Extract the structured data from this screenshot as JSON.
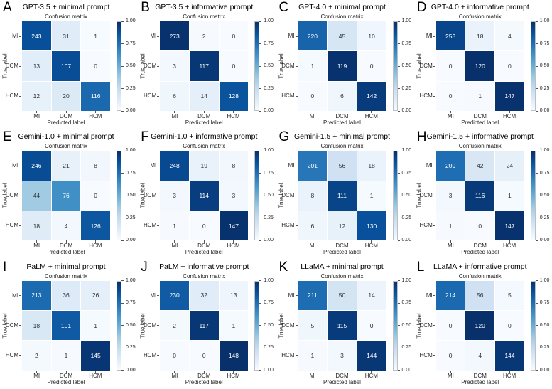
{
  "figure": {
    "background": "#ffffff",
    "layout": "4x3 grid of row-normalized confusion-matrix heatmaps"
  },
  "colorbar": {
    "tick_labels": [
      "0.00",
      "0.25",
      "0.50",
      "0.75",
      "1.00"
    ],
    "range": [
      0,
      1
    ]
  },
  "colors": {
    "colormap_name": "Blues",
    "colormap_stops": [
      "#f7fbff",
      "#deebf7",
      "#c6dbef",
      "#9ecae1",
      "#6baed6",
      "#4292c6",
      "#2171b5",
      "#08519c",
      "#08306b"
    ],
    "cell_text_light": "#ffffff",
    "cell_text_dark": "#333333",
    "axis_text": "#262626",
    "background": "#ffffff"
  },
  "chart_data": [
    {
      "type": "heatmap",
      "panel_letter": "A",
      "title": "GPT-3.5 + minimal prompt",
      "subtitle": "Confusion matrix",
      "xlabel": "Predicted label",
      "ylabel": "True label",
      "x_categories": [
        "MI",
        "DCM",
        "HCM"
      ],
      "y_categories": [
        "MI",
        "DCM",
        "HCM"
      ],
      "values": [
        [
          243,
          31,
          1
        ],
        [
          13,
          107,
          0
        ],
        [
          12,
          20,
          116
        ]
      ],
      "normalization": "row",
      "colormap": "Blues",
      "value_range": [
        0,
        1
      ]
    },
    {
      "type": "heatmap",
      "panel_letter": "B",
      "title": "GPT-3.5 + informative prompt",
      "subtitle": "Confusion matrix",
      "xlabel": "Predicted label",
      "ylabel": "True label",
      "x_categories": [
        "MI",
        "DCM",
        "HCM"
      ],
      "y_categories": [
        "MI",
        "DCM",
        "HCM"
      ],
      "values": [
        [
          273,
          2,
          0
        ],
        [
          3,
          117,
          0
        ],
        [
          6,
          14,
          128
        ]
      ],
      "normalization": "row",
      "colormap": "Blues",
      "value_range": [
        0,
        1
      ]
    },
    {
      "type": "heatmap",
      "panel_letter": "C",
      "title": "GPT-4.0 + minimal prompt",
      "subtitle": "Confusion matrix",
      "xlabel": "Predicted label",
      "ylabel": "True label",
      "x_categories": [
        "MI",
        "DCM",
        "HCM"
      ],
      "y_categories": [
        "MI",
        "DCM",
        "HCM"
      ],
      "values": [
        [
          220,
          45,
          10
        ],
        [
          1,
          119,
          0
        ],
        [
          0,
          6,
          142
        ]
      ],
      "normalization": "row",
      "colormap": "Blues",
      "value_range": [
        0,
        1
      ]
    },
    {
      "type": "heatmap",
      "panel_letter": "D",
      "title": "GPT-4.0 + informative prompt",
      "subtitle": "Confusion matrix",
      "xlabel": "Predicted label",
      "ylabel": "True label",
      "x_categories": [
        "MI",
        "DCM",
        "HCM"
      ],
      "y_categories": [
        "MI",
        "DCM",
        "HCM"
      ],
      "values": [
        [
          253,
          18,
          4
        ],
        [
          0,
          120,
          0
        ],
        [
          0,
          1,
          147
        ]
      ],
      "normalization": "row",
      "colormap": "Blues",
      "value_range": [
        0,
        1
      ]
    },
    {
      "type": "heatmap",
      "panel_letter": "E",
      "title": "Gemini-1.0 + minimal prompt",
      "subtitle": "Confusion matrix",
      "xlabel": "Predicted label",
      "ylabel": "True label",
      "x_categories": [
        "MI",
        "DCM",
        "HCM"
      ],
      "y_categories": [
        "MI",
        "DCM",
        "HCM"
      ],
      "values": [
        [
          246,
          21,
          8
        ],
        [
          44,
          76,
          0
        ],
        [
          18,
          4,
          126
        ]
      ],
      "normalization": "row",
      "colormap": "Blues",
      "value_range": [
        0,
        1
      ]
    },
    {
      "type": "heatmap",
      "panel_letter": "F",
      "title": "Gemini-1.0 + informative prompt",
      "subtitle": "Confusion matrix",
      "xlabel": "Predicted label",
      "ylabel": "True label",
      "x_categories": [
        "MI",
        "DCM",
        "HCM"
      ],
      "y_categories": [
        "MI",
        "DCM",
        "HCM"
      ],
      "values": [
        [
          248,
          19,
          8
        ],
        [
          3,
          114,
          3
        ],
        [
          1,
          0,
          147
        ]
      ],
      "normalization": "row",
      "colormap": "Blues",
      "value_range": [
        0,
        1
      ]
    },
    {
      "type": "heatmap",
      "panel_letter": "G",
      "title": "Gemini-1.5 + minimal prompt",
      "subtitle": "Confusion matrix",
      "xlabel": "Predicted label",
      "ylabel": "True label",
      "x_categories": [
        "MI",
        "DCM",
        "HCM"
      ],
      "y_categories": [
        "MI",
        "DCM",
        "HCM"
      ],
      "values": [
        [
          201,
          56,
          18
        ],
        [
          8,
          111,
          1
        ],
        [
          6,
          12,
          130
        ]
      ],
      "normalization": "row",
      "colormap": "Blues",
      "value_range": [
        0,
        1
      ]
    },
    {
      "type": "heatmap",
      "panel_letter": "H",
      "title": "Gemini-1.5 + informative prompt",
      "subtitle": "Confusion matrix",
      "xlabel": "Predicted label",
      "ylabel": "True label",
      "x_categories": [
        "MI",
        "DCM",
        "HCM"
      ],
      "y_categories": [
        "MI",
        "DCM",
        "HCM"
      ],
      "values": [
        [
          209,
          42,
          24
        ],
        [
          3,
          116,
          1
        ],
        [
          1,
          0,
          147
        ]
      ],
      "normalization": "row",
      "colormap": "Blues",
      "value_range": [
        0,
        1
      ]
    },
    {
      "type": "heatmap",
      "panel_letter": "I",
      "title": "PaLM + minimal prompt",
      "subtitle": "Confusion matrix",
      "xlabel": "Predicted label",
      "ylabel": "True label",
      "x_categories": [
        "MI",
        "DCM",
        "HCM"
      ],
      "y_categories": [
        "MI",
        "DCM",
        "HCM"
      ],
      "values": [
        [
          213,
          36,
          26
        ],
        [
          18,
          101,
          1
        ],
        [
          2,
          1,
          145
        ]
      ],
      "normalization": "row",
      "colormap": "Blues",
      "value_range": [
        0,
        1
      ]
    },
    {
      "type": "heatmap",
      "panel_letter": "J",
      "title": "PaLM + informative prompt",
      "subtitle": "Confusion matrix",
      "xlabel": "Predicted label",
      "ylabel": "True label",
      "x_categories": [
        "MI",
        "DCM",
        "HCM"
      ],
      "y_categories": [
        "MI",
        "DCM",
        "HCM"
      ],
      "values": [
        [
          230,
          32,
          13
        ],
        [
          2,
          117,
          1
        ],
        [
          0,
          0,
          148
        ]
      ],
      "normalization": "row",
      "colormap": "Blues",
      "value_range": [
        0,
        1
      ]
    },
    {
      "type": "heatmap",
      "panel_letter": "K",
      "title": "LLaMA + minimal prompt",
      "subtitle": "Confusion matrix",
      "xlabel": "Predicted label",
      "ylabel": "True label",
      "x_categories": [
        "MI",
        "DCM",
        "HCM"
      ],
      "y_categories": [
        "MI",
        "DCM",
        "HCM"
      ],
      "values": [
        [
          211,
          50,
          14
        ],
        [
          5,
          115,
          0
        ],
        [
          1,
          3,
          144
        ]
      ],
      "normalization": "row",
      "colormap": "Blues",
      "value_range": [
        0,
        1
      ]
    },
    {
      "type": "heatmap",
      "panel_letter": "L",
      "title": "LLaMA + informative prompt",
      "subtitle": "Confusion matrix",
      "xlabel": "Predicted label",
      "ylabel": "True label",
      "x_categories": [
        "MI",
        "DCM",
        "HCM"
      ],
      "y_categories": [
        "MI",
        "DCM",
        "HCM"
      ],
      "values": [
        [
          214,
          56,
          5
        ],
        [
          0,
          120,
          0
        ],
        [
          0,
          4,
          144
        ]
      ],
      "normalization": "row",
      "colormap": "Blues",
      "value_range": [
        0,
        1
      ]
    }
  ]
}
